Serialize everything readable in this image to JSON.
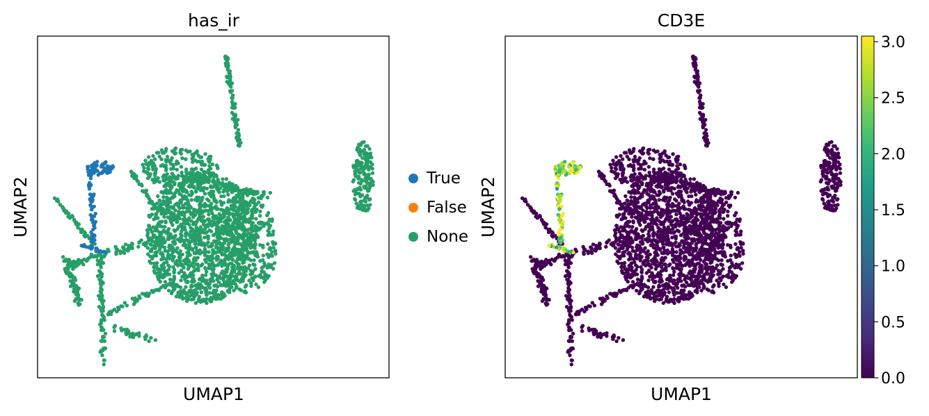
{
  "chart_data": [
    {
      "type": "scatter",
      "title": "has_ir",
      "xlabel": "UMAP1",
      "ylabel": "UMAP2",
      "color_by": "category",
      "legend": {
        "placement": "right-outside",
        "entries": [
          {
            "label": "True",
            "color": "#1f77b4"
          },
          {
            "label": "False",
            "color": "#ff7f0e"
          },
          {
            "label": "None",
            "color": "#279e68"
          }
        ]
      },
      "ticks_shown": false,
      "grid": false
    },
    {
      "type": "scatter",
      "title": "CD3E",
      "xlabel": "UMAP1",
      "ylabel": "UMAP2",
      "color_by": "expression",
      "colormap": "viridis",
      "colorbar": {
        "min": 0.0,
        "max": 3.05,
        "ticks": [
          "0.0",
          "0.5",
          "1.0",
          "1.5",
          "2.0",
          "2.5",
          "3.0"
        ],
        "tick_values": [
          0.0,
          0.5,
          1.0,
          1.5,
          2.0,
          2.5,
          3.0
        ]
      },
      "ticks_shown": false,
      "grid": false
    }
  ],
  "colors": {
    "true": "#1f77b4",
    "false": "#ff7f0e",
    "none": "#279e68",
    "viridis": [
      "#440154",
      "#482878",
      "#3e4989",
      "#31688e",
      "#26828e",
      "#1f9e89",
      "#35b779",
      "#6ece58",
      "#b5de2b",
      "#fde725"
    ]
  }
}
